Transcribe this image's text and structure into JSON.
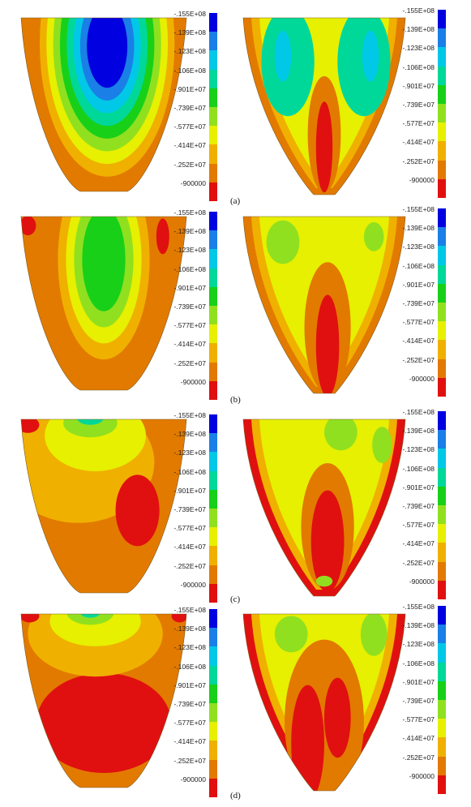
{
  "figure": {
    "captions": [
      "(a)",
      "(b)",
      "(c)",
      "(d)"
    ],
    "legend_labels": [
      "-.155E+08",
      "-.139E+08",
      "-.123E+08",
      "-.106E+08",
      "-.901E+07",
      "-.739E+07",
      "-.577E+07",
      "-.414E+07",
      "-.252E+07",
      "-900000"
    ],
    "legend_colors": [
      "#0000e0",
      "#1a7fe6",
      "#00c8e6",
      "#00d89a",
      "#18d018",
      "#90e020",
      "#e6f000",
      "#f0b000",
      "#e27a00",
      "#e01010"
    ]
  }
}
